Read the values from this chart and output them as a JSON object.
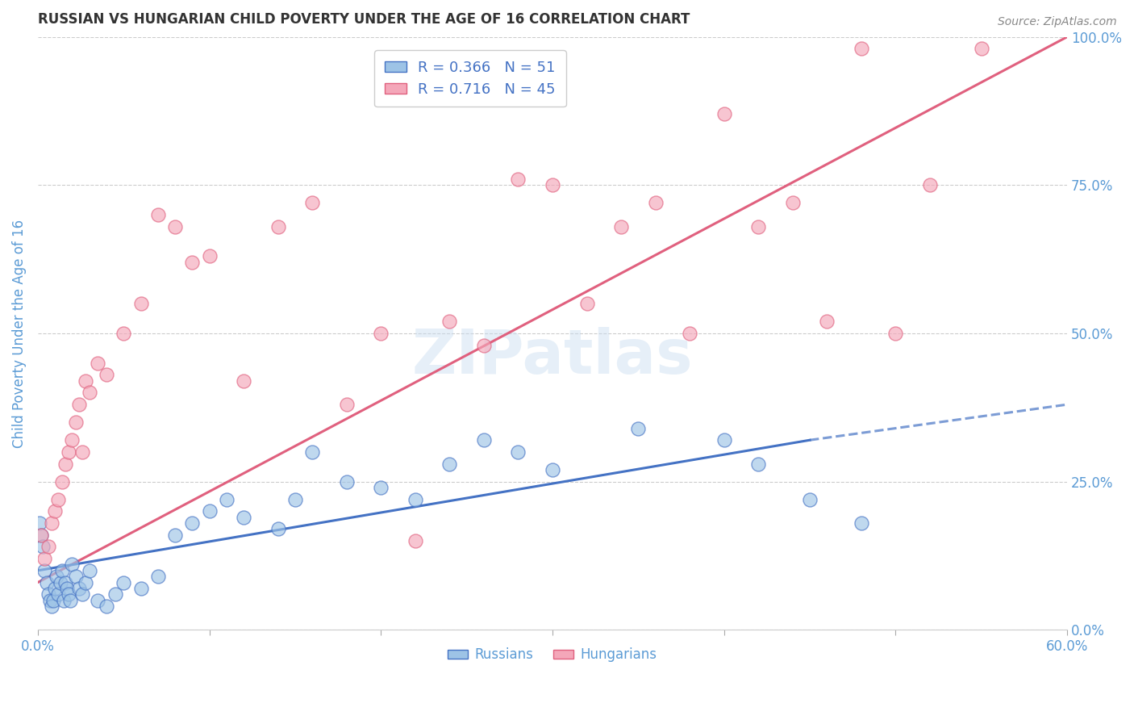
{
  "title": "RUSSIAN VS HUNGARIAN CHILD POVERTY UNDER THE AGE OF 16 CORRELATION CHART",
  "source": "Source: ZipAtlas.com",
  "ylabel": "Child Poverty Under the Age of 16",
  "xlim": [
    0.0,
    60.0
  ],
  "ylim": [
    0.0,
    100.0
  ],
  "xtick_positions": [
    0.0,
    10.0,
    20.0,
    30.0,
    40.0,
    50.0,
    60.0
  ],
  "xtick_labels": [
    "0.0%",
    "",
    "",
    "",
    "",
    "",
    "60.0%"
  ],
  "yticks_right": [
    0.0,
    25.0,
    50.0,
    75.0,
    100.0
  ],
  "background_color": "#ffffff",
  "grid_color": "#cccccc",
  "title_color": "#333333",
  "axis_label_color": "#5b9bd5",
  "watermark": "ZIPatlas",
  "russian_color": "#9dc3e6",
  "hungarian_color": "#f4a7b9",
  "russian_line_color": "#4472c4",
  "hungarian_line_color": "#e0607e",
  "russian_r": 0.366,
  "russian_n": 51,
  "hungarian_r": 0.716,
  "hungarian_n": 45,
  "russians_x": [
    0.1,
    0.2,
    0.3,
    0.4,
    0.5,
    0.6,
    0.7,
    0.8,
    0.9,
    1.0,
    1.1,
    1.2,
    1.3,
    1.4,
    1.5,
    1.6,
    1.7,
    1.8,
    1.9,
    2.0,
    2.2,
    2.4,
    2.6,
    2.8,
    3.0,
    3.5,
    4.0,
    4.5,
    5.0,
    6.0,
    7.0,
    8.0,
    9.0,
    10.0,
    11.0,
    12.0,
    14.0,
    15.0,
    16.0,
    18.0,
    20.0,
    22.0,
    24.0,
    26.0,
    28.0,
    30.0,
    35.0,
    40.0,
    42.0,
    45.0,
    48.0
  ],
  "russians_y": [
    18.0,
    16.0,
    14.0,
    10.0,
    8.0,
    6.0,
    5.0,
    4.0,
    5.0,
    7.0,
    9.0,
    6.0,
    8.0,
    10.0,
    5.0,
    8.0,
    7.0,
    6.0,
    5.0,
    11.0,
    9.0,
    7.0,
    6.0,
    8.0,
    10.0,
    5.0,
    4.0,
    6.0,
    8.0,
    7.0,
    9.0,
    16.0,
    18.0,
    20.0,
    22.0,
    19.0,
    17.0,
    22.0,
    30.0,
    25.0,
    24.0,
    22.0,
    28.0,
    32.0,
    30.0,
    27.0,
    34.0,
    32.0,
    28.0,
    22.0,
    18.0
  ],
  "hungarians_x": [
    0.2,
    0.4,
    0.6,
    0.8,
    1.0,
    1.2,
    1.4,
    1.6,
    1.8,
    2.0,
    2.2,
    2.4,
    2.6,
    2.8,
    3.0,
    3.5,
    4.0,
    5.0,
    6.0,
    7.0,
    8.0,
    9.0,
    10.0,
    12.0,
    14.0,
    16.0,
    18.0,
    20.0,
    22.0,
    24.0,
    26.0,
    28.0,
    30.0,
    32.0,
    34.0,
    36.0,
    38.0,
    40.0,
    42.0,
    44.0,
    46.0,
    48.0,
    50.0,
    52.0,
    55.0
  ],
  "hungarians_y": [
    16.0,
    12.0,
    14.0,
    18.0,
    20.0,
    22.0,
    25.0,
    28.0,
    30.0,
    32.0,
    35.0,
    38.0,
    30.0,
    42.0,
    40.0,
    45.0,
    43.0,
    50.0,
    55.0,
    70.0,
    68.0,
    62.0,
    63.0,
    42.0,
    68.0,
    72.0,
    38.0,
    50.0,
    15.0,
    52.0,
    48.0,
    76.0,
    75.0,
    55.0,
    68.0,
    72.0,
    50.0,
    87.0,
    68.0,
    72.0,
    52.0,
    98.0,
    50.0,
    75.0,
    98.0
  ],
  "russian_line_x0": 0.0,
  "russian_line_y0": 10.0,
  "russian_line_x1": 45.0,
  "russian_line_y1": 32.0,
  "russian_line_xdash": 60.0,
  "russian_line_ydash": 38.0,
  "hungarian_line_x0": 0.0,
  "hungarian_line_y0": 8.0,
  "hungarian_line_x1": 60.0,
  "hungarian_line_y1": 100.0
}
